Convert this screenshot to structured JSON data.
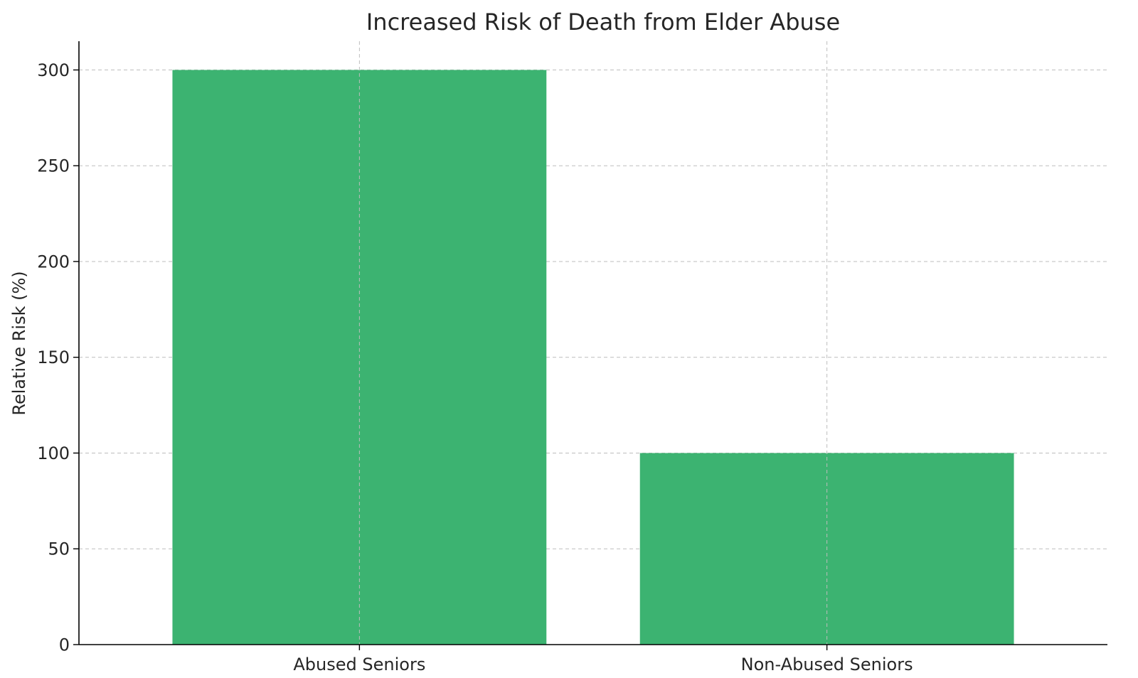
{
  "chart_data": {
    "type": "bar",
    "title": "Increased Risk of Death from Elder Abuse",
    "xlabel": "",
    "ylabel": "Relative Risk (%)",
    "categories": [
      "Abused Seniors",
      "Non-Abused Seniors"
    ],
    "values": [
      300,
      100
    ],
    "ylim": [
      0,
      315
    ],
    "yticks": [
      0,
      50,
      100,
      150,
      200,
      250,
      300
    ],
    "grid": true,
    "bar_color": "#3cb371",
    "grid_color": "#bdbdbd"
  }
}
